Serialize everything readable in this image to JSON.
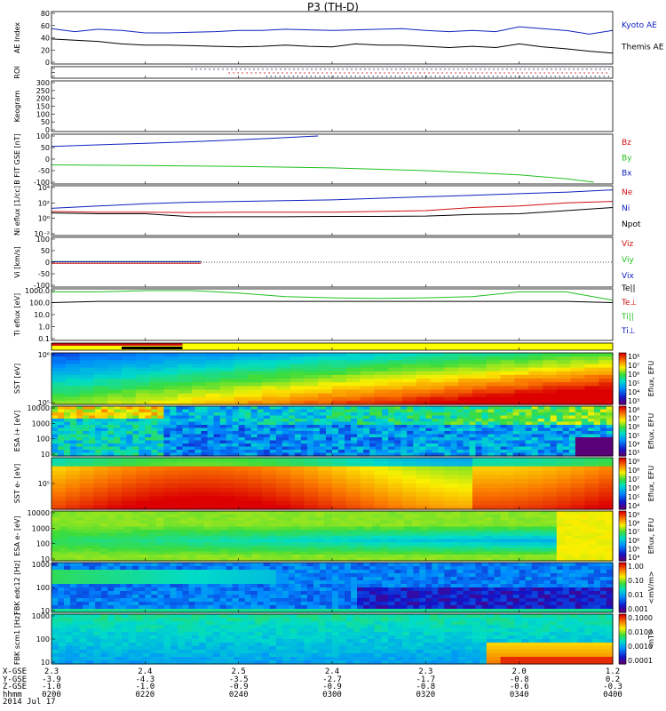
{
  "title": "P3 (TH-D)",
  "date_label": "2014 Jul 17",
  "footer_row_labels": [
    "X-GSE",
    "Y-GSE",
    "Z-GSE",
    "hhmm"
  ],
  "footer_columns": [
    {
      "x": "2.3",
      "y": "-3.9",
      "z": "-1.0",
      "t": "0200"
    },
    {
      "x": "2.4",
      "y": "-4.3",
      "z": "-1.0",
      "t": "0220"
    },
    {
      "x": "2.5",
      "y": "-3.5",
      "z": "-0.9",
      "t": "0240"
    },
    {
      "x": "2.4",
      "y": "-2.7",
      "z": "-0.9",
      "t": "0300"
    },
    {
      "x": "2.3",
      "y": "-1.7",
      "z": "-0.8",
      "t": "0320"
    },
    {
      "x": "2.0",
      "y": "-0.8",
      "z": "-0.6",
      "t": "0340"
    },
    {
      "x": "1.2",
      "y": "0.2",
      "z": "-0.3",
      "t": "0400"
    }
  ],
  "colors": {
    "blue": "#1020c0",
    "black": "#000000",
    "red": "#d01010",
    "green": "#20c020",
    "axis": "#000000"
  },
  "chart_data": [
    {
      "type": "line",
      "panel": "ae",
      "ylabel": "AE Index",
      "ylim": [
        0,
        80
      ],
      "yticks": [
        "80",
        "60",
        "40",
        "20",
        "0"
      ],
      "x": [
        0,
        5,
        10,
        15,
        20,
        25,
        30,
        35,
        40,
        45,
        50,
        55,
        60,
        65,
        70,
        75,
        80,
        85,
        90,
        95,
        100,
        105,
        110,
        115,
        120
      ],
      "series": [
        {
          "name": "Kyoto AE",
          "color": "#1020c0",
          "values": [
            55,
            50,
            54,
            52,
            48,
            48,
            49,
            50,
            52,
            52,
            54,
            53,
            52,
            53,
            54,
            55,
            52,
            50,
            52,
            50,
            58,
            55,
            52,
            46,
            52
          ]
        },
        {
          "name": "Themis AE",
          "color": "#000000",
          "values": [
            38,
            36,
            34,
            30,
            28,
            28,
            27,
            26,
            25,
            26,
            28,
            26,
            25,
            30,
            28,
            28,
            26,
            24,
            26,
            24,
            30,
            25,
            22,
            18,
            15
          ]
        }
      ]
    },
    {
      "type": "scatter",
      "panel": "roi",
      "ylabel": "ROI",
      "yticks": [
        "",
        "",
        ""
      ]
    },
    {
      "type": "line",
      "panel": "keogram",
      "ylabel": "Keogram",
      "ylim": [
        0,
        300
      ],
      "yticks": [
        "300",
        "250",
        "200",
        "150",
        "100",
        "50",
        "0"
      ]
    },
    {
      "type": "line",
      "panel": "bfield",
      "ylabel": "B FIT GSE [nT]",
      "ylim": [
        -100,
        100
      ],
      "yticks": [
        "100",
        "50",
        "0",
        "-50",
        "-100"
      ],
      "x": [
        0,
        10,
        20,
        30,
        40,
        50,
        60
      ],
      "series": [
        {
          "name": "Bz",
          "color": "#d01010",
          "values": [
            null,
            null,
            null,
            null,
            null,
            null,
            null
          ]
        },
        {
          "name": "By",
          "color": "#20c020",
          "x": [
            0,
            20,
            40,
            60,
            80,
            100,
            110,
            116
          ],
          "values": [
            -25,
            -28,
            -32,
            -38,
            -50,
            -68,
            -85,
            -100
          ]
        },
        {
          "name": "Bx",
          "color": "#1020c0",
          "x": [
            0,
            15,
            30,
            45,
            55,
            57
          ],
          "values": [
            55,
            65,
            75,
            88,
            98,
            100
          ]
        }
      ]
    },
    {
      "type": "line",
      "panel": "density",
      "ylabel": "Ni eflux [1/cc]",
      "log": true,
      "ylim_exp": [
        -2,
        4
      ],
      "yticks": [
        "10⁴",
        "10²",
        "10⁰",
        "10⁻²"
      ],
      "x": [
        0,
        10,
        20,
        30,
        40,
        50,
        60,
        70,
        80,
        90,
        100,
        110,
        120
      ],
      "series": [
        {
          "name": "Ne",
          "color": "#d01010",
          "values": [
            0.9,
            0.8,
            0.8,
            0.75,
            0.8,
            0.8,
            0.8,
            0.9,
            1.0,
            1.4,
            1.6,
            2.0,
            2.2
          ]
        },
        {
          "name": "Ni",
          "color": "#1020c0",
          "values": [
            1.3,
            1.6,
            1.9,
            2.1,
            2.2,
            2.3,
            2.4,
            2.6,
            2.8,
            3.0,
            3.2,
            3.4,
            3.7
          ]
        },
        {
          "name": "Npot",
          "color": "#000000",
          "values": [
            0.7,
            0.6,
            0.6,
            0.2,
            0.2,
            0.2,
            0.25,
            0.25,
            0.3,
            0.5,
            0.6,
            1.0,
            1.4
          ]
        }
      ]
    },
    {
      "type": "line",
      "panel": "velocity",
      "ylabel": "Vi [km/s]",
      "ylim": [
        -100,
        100
      ],
      "yticks": [
        "100",
        "50",
        "0",
        "-50",
        "-100"
      ],
      "x": [
        0,
        32
      ],
      "series": [
        {
          "name": "Viz",
          "color": "#d01010",
          "values": [
            -5,
            -5
          ]
        },
        {
          "name": "Viy",
          "color": "#20c020",
          "values": [
            3,
            3
          ]
        },
        {
          "name": "Vix",
          "color": "#1020c0",
          "values": [
            2,
            2
          ]
        }
      ]
    },
    {
      "type": "line",
      "panel": "temperature",
      "ylabel": "Ti eflux [eV]",
      "log": true,
      "yticks": [
        "1000.0",
        "100.0",
        "10.0",
        "1.0",
        "0.1"
      ],
      "x": [
        0,
        10,
        20,
        30,
        40,
        50,
        60,
        70,
        80,
        90,
        100,
        110,
        120
      ],
      "series": [
        {
          "name": "Te||",
          "color": "#000000",
          "values": [
            2.0,
            2.1,
            2.1,
            2.1,
            2.1,
            2.1,
            2.1,
            2.1,
            2.1,
            2.1,
            2.1,
            2.1,
            2.0
          ]
        },
        {
          "name": "Te⊥",
          "color": "#d01010",
          "values": [
            null,
            null,
            null,
            null,
            null,
            null,
            null,
            null,
            null,
            null,
            null,
            null,
            null
          ]
        },
        {
          "name": "Ti||",
          "color": "#20c020",
          "values": [
            2.9,
            2.9,
            3.0,
            3.0,
            2.8,
            2.5,
            2.4,
            2.35,
            2.4,
            2.5,
            2.9,
            2.9,
            2.2
          ]
        },
        {
          "name": "Ti⊥",
          "color": "#1020c0",
          "values": [
            null,
            null,
            null,
            null,
            null,
            null,
            null,
            null,
            null,
            null,
            null,
            null,
            null
          ]
        }
      ]
    },
    {
      "type": "heatmap",
      "panel": "sst_ion",
      "ylabel": "SST [eV]",
      "yticks": [
        "10⁶",
        "10⁵"
      ],
      "colorbar_label": "Eflux, EFU",
      "colorbar_ticks": [
        "10⁸",
        "10⁷",
        "10⁶",
        "10⁵",
        "10⁴",
        "10³"
      ]
    },
    {
      "type": "heatmap",
      "panel": "esa_ion",
      "ylabel": "ESA i+ [eV]",
      "yticks": [
        "10000",
        "1000",
        "100",
        "10"
      ],
      "colorbar_label": "Eflux, EFU",
      "colorbar_ticks": [
        "10⁸",
        "10⁷",
        "10⁶",
        "10⁵",
        "10⁴",
        "10³"
      ]
    },
    {
      "type": "heatmap",
      "panel": "sst_elec",
      "ylabel": "SST e- [eV]",
      "yticks": [
        "10⁵"
      ],
      "colorbar_label": "Eflux, EFU",
      "colorbar_ticks": [
        "10⁹",
        "10⁸",
        "10⁷",
        "10⁶",
        "10⁵",
        "10⁴"
      ]
    },
    {
      "type": "heatmap",
      "panel": "esa_elec",
      "ylabel": "ESA e- [eV]",
      "yticks": [
        "10000",
        "1000",
        "100",
        "10"
      ],
      "colorbar_label": "Eflux, EFU",
      "colorbar_ticks": [
        "10⁹",
        "10⁸",
        "10⁷",
        "10⁶",
        "10⁵",
        "10⁴"
      ]
    },
    {
      "type": "heatmap",
      "panel": "fbk_edc",
      "ylabel": "FBK edc12 [Hz]",
      "yticks": [
        "1000",
        "100",
        "10"
      ],
      "colorbar_label": "<mV/m>",
      "colorbar_ticks": [
        "1.00",
        "0.10",
        "0.01",
        "0.001"
      ]
    },
    {
      "type": "heatmap",
      "panel": "fbk_scm",
      "ylabel": "FBK scm1 [Hz]",
      "yticks": [
        "1000",
        "100",
        "10"
      ],
      "colorbar_label": "<nT>",
      "colorbar_ticks": [
        "0.1000",
        "0.0100",
        "0.0010",
        "0.0001"
      ]
    }
  ]
}
